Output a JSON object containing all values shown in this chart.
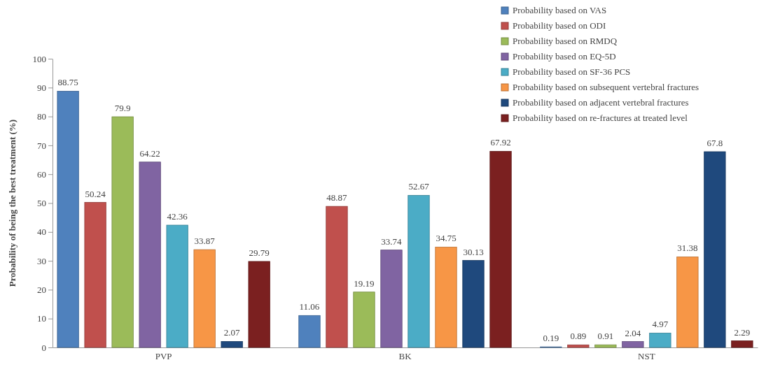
{
  "chart_data": {
    "type": "bar",
    "ylabel": "Probability of being the best treatment (%)",
    "categories": [
      "PVP",
      "BK",
      "NST"
    ],
    "ylim": [
      0,
      100
    ],
    "yticks": [
      0,
      10,
      20,
      30,
      40,
      50,
      60,
      70,
      80,
      90,
      100
    ],
    "grid": false,
    "legend": "top right",
    "data_labels": true,
    "series": [
      {
        "name": "Probability based on VAS",
        "color": "#4f81bd",
        "values": [
          88.75,
          11.06,
          0.19
        ]
      },
      {
        "name": "Probability based on ODI",
        "color": "#c0504d",
        "values": [
          50.24,
          48.87,
          0.89
        ]
      },
      {
        "name": "Probability based on RMDQ",
        "color": "#9bbb59",
        "values": [
          79.9,
          19.19,
          0.91
        ]
      },
      {
        "name": "Probability based on EQ-5D",
        "color": "#8064a2",
        "values": [
          64.22,
          33.74,
          2.04
        ]
      },
      {
        "name": "Probability based on SF-36 PCS",
        "color": "#4bacc6",
        "values": [
          42.36,
          52.67,
          4.97
        ]
      },
      {
        "name": "Probability based on subsequent vertebral fractures",
        "color": "#f79646",
        "values": [
          33.87,
          34.75,
          31.38
        ]
      },
      {
        "name": "Probability based on adjacent vertebral fractures",
        "color": "#1f497d",
        "values": [
          2.07,
          30.13,
          67.8
        ]
      },
      {
        "name": "Probability based on re-fractures at treated level",
        "color": "#7b2020",
        "values": [
          29.79,
          67.92,
          2.29
        ]
      }
    ]
  }
}
